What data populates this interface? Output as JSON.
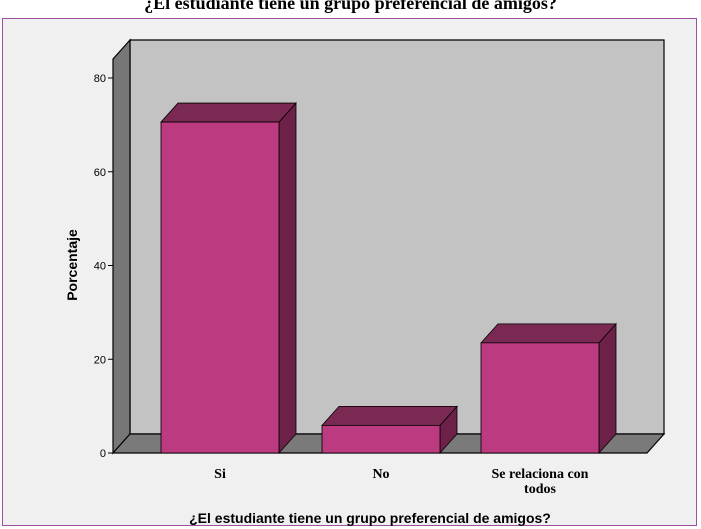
{
  "chart_data": {
    "type": "bar",
    "title": "¿El estudiante tiene un grupo preferencial de amigos?",
    "xlabel": "¿El estudiante tiene un grupo preferencial de amigos?",
    "ylabel": "Porcentaje",
    "categories": [
      "Si",
      "No",
      "Se relaciona con todos"
    ],
    "category_lines": [
      [
        "Si"
      ],
      [
        "No"
      ],
      [
        "Se relaciona con",
        "todos"
      ]
    ],
    "values": [
      70.6,
      5.9,
      23.5
    ],
    "ylim": [
      0,
      80
    ],
    "yticks": [
      0,
      20,
      40,
      60,
      80
    ],
    "grid": false,
    "colors": {
      "bar_front": "#bb3a80",
      "bar_top": "#7a2a52",
      "bar_side": "#6e2148",
      "back_wall": "#c3c3c3",
      "side_wall": "#777777",
      "floor": "#7a7a7a",
      "background": "#f0f0f0"
    }
  }
}
